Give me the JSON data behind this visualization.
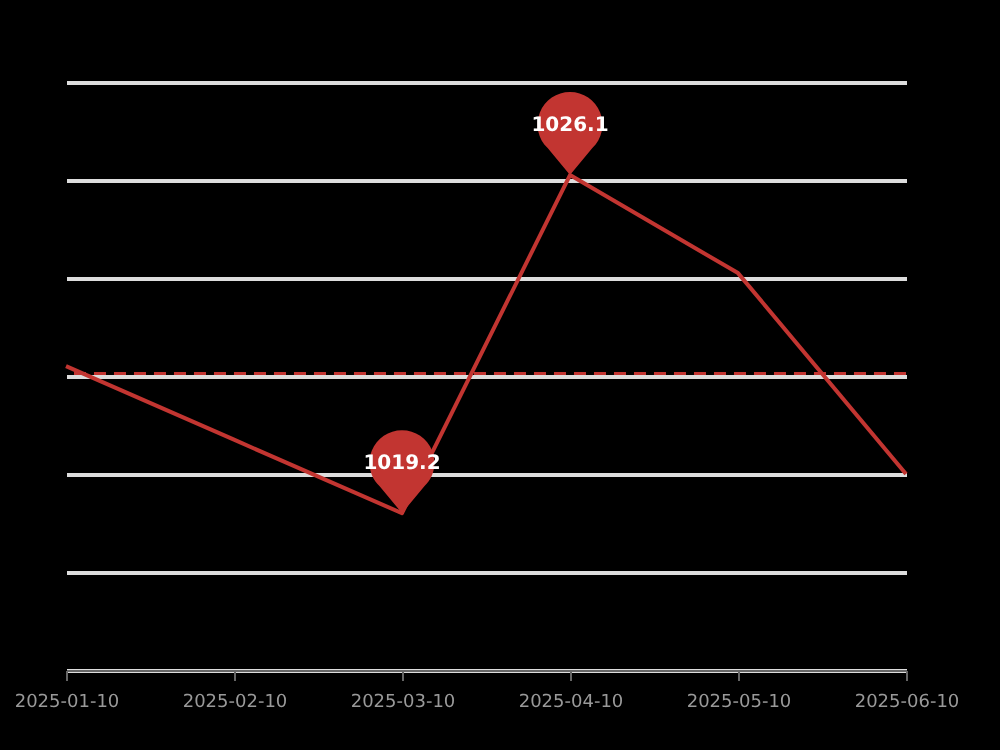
{
  "chart_data": {
    "type": "line",
    "categories": [
      "2025-01-10",
      "2025-02-10",
      "2025-03-10",
      "2025-04-10",
      "2025-05-10",
      "2025-06-10"
    ],
    "series": [
      {
        "color": "#c23531",
        "values": [
          1022.2,
          1020.7,
          1019.2,
          1026.1,
          1024.1,
          1020.0
        ],
        "value_labels": [
          null,
          null,
          "1019.2",
          "1026.1",
          null,
          null
        ]
      }
    ],
    "ylim": [
      1016,
      1028
    ],
    "yticks": [
      {
        "value": 1016,
        "label": null
      },
      {
        "value": 1018,
        "label": null
      },
      {
        "value": 1020,
        "label": null
      },
      {
        "value": 1022,
        "label": null
      },
      {
        "value": 1024,
        "label": null
      },
      {
        "value": 1026,
        "label": null
      },
      {
        "value": 1028,
        "label": null
      }
    ],
    "tick_labels": "x",
    "grid": "y",
    "marker": "none",
    "line_style": "solid",
    "ref_lines": [
      {
        "axis": "y",
        "value": 1022.05,
        "label": null,
        "color": "#c23531",
        "line_style": "dashed"
      }
    ]
  }
}
